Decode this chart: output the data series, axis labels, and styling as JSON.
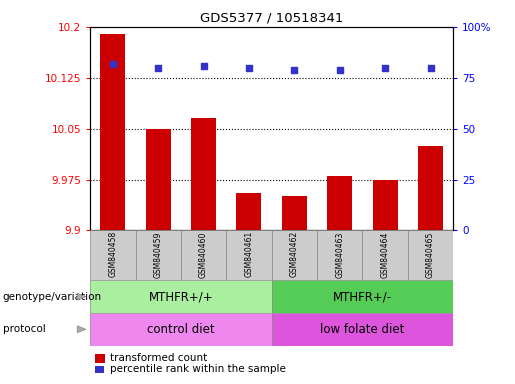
{
  "title": "GDS5377 / 10518341",
  "samples": [
    "GSM840458",
    "GSM840459",
    "GSM840460",
    "GSM840461",
    "GSM840462",
    "GSM840463",
    "GSM840464",
    "GSM840465"
  ],
  "transformed_count": [
    10.19,
    10.05,
    10.065,
    9.955,
    9.95,
    9.98,
    9.975,
    10.025
  ],
  "percentile_rank": [
    82,
    80,
    81,
    80,
    79,
    79,
    80,
    80
  ],
  "ylim_left": [
    9.9,
    10.2
  ],
  "ylim_right": [
    0,
    100
  ],
  "yticks_left": [
    9.9,
    9.975,
    10.05,
    10.125,
    10.2
  ],
  "ytick_labels_left": [
    "9.9",
    "9.975",
    "10.05",
    "10.125",
    "10.2"
  ],
  "yticks_right": [
    0,
    25,
    50,
    75,
    100
  ],
  "ytick_labels_right": [
    "0",
    "25",
    "50",
    "75",
    "100%"
  ],
  "bar_color": "#cc0000",
  "dot_color": "#3333cc",
  "genotype_groups": [
    {
      "label": "MTHFR+/+",
      "start": 0,
      "end": 3,
      "color": "#aaeea0"
    },
    {
      "label": "MTHFR+/-",
      "start": 4,
      "end": 7,
      "color": "#55cc55"
    }
  ],
  "protocol_groups": [
    {
      "label": "control diet",
      "start": 0,
      "end": 3,
      "color": "#ee88ee"
    },
    {
      "label": "low folate diet",
      "start": 4,
      "end": 7,
      "color": "#dd55dd"
    }
  ],
  "genotype_label": "genotype/variation",
  "protocol_label": "protocol",
  "legend_bar_label": "transformed count",
  "legend_dot_label": "percentile rank within the sample",
  "base_value": 9.9,
  "sample_box_color": "#cccccc",
  "sample_box_edge": "#888888"
}
